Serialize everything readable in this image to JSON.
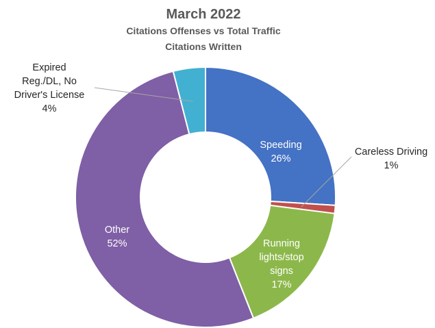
{
  "chart_data": {
    "type": "pie",
    "variant": "doughnut",
    "title": "March 2022",
    "subtitle": "Citations Offenses vs Total Traffic Citations Written",
    "slices": [
      {
        "label": "Speeding",
        "value": 26,
        "value_label": "26%",
        "color": "#4472c4"
      },
      {
        "label": "Careless Driving",
        "value": 1,
        "value_label": "1%",
        "color": "#c0504d"
      },
      {
        "label": "Running lights/stop signs",
        "value": 17,
        "value_label": "17%",
        "color": "#8cb84b"
      },
      {
        "label": "Other",
        "value": 52,
        "value_label": "52%",
        "color": "#7f5fa5"
      },
      {
        "label": "Expired Reg./DL, No Driver's License",
        "value": 4,
        "value_label": "4%",
        "color": "#42b0d1"
      }
    ],
    "legend": "none"
  }
}
